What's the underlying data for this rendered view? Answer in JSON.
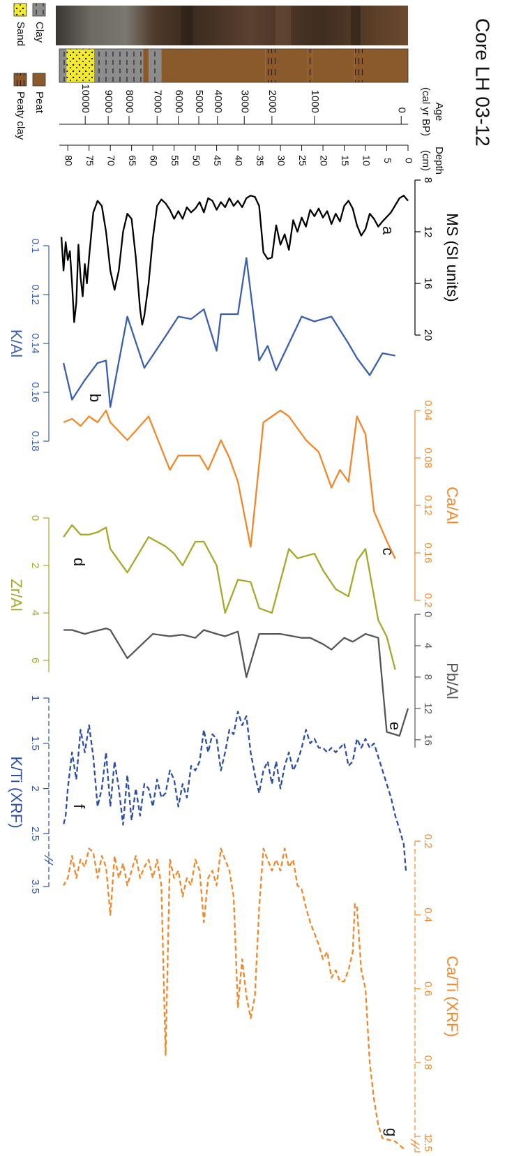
{
  "chart_data": [
    {
      "type": "core",
      "title": "Core LH 03-12",
      "age_label": [
        "Age",
        "(cal yr BP)"
      ],
      "depth_label": [
        "Depth",
        "(cm)"
      ],
      "ylim": [
        0,
        82
      ],
      "yticks": [
        0,
        5,
        10,
        15,
        20,
        25,
        30,
        35,
        40,
        45,
        50,
        55,
        60,
        65,
        70,
        75,
        80
      ],
      "age_ticks": [
        0,
        1000,
        2000,
        3000,
        4000,
        5000,
        6000,
        7000,
        8000,
        9000,
        10000
      ],
      "age_tick_depths": [
        1.6,
        22,
        32,
        38.5,
        44.8,
        49.2,
        54,
        59,
        65.6,
        70.5,
        75.9
      ],
      "legend": [
        {
          "name": "Clay",
          "color": "#8c8c8c"
        },
        {
          "name": "Sand",
          "color": "#f3ea2b"
        },
        {
          "name": "Peat",
          "color": "#8b5a2b"
        },
        {
          "name": "Peaty clay",
          "color": "#8b5a2b"
        }
      ],
      "layers": [
        {
          "lith": "Peat",
          "top": 0,
          "bottom": 10.5
        },
        {
          "lith": "Peaty clay",
          "top": 10.5,
          "bottom": 12.5
        },
        {
          "lith": "Peat",
          "top": 12.5,
          "bottom": 22.5
        },
        {
          "lith": "Peaty clay",
          "top": 22.5,
          "bottom": 23.5
        },
        {
          "lith": "Peat",
          "top": 23.5,
          "bottom": 31
        },
        {
          "lith": "Peaty clay",
          "top": 31,
          "bottom": 33.5
        },
        {
          "lith": "Peat",
          "top": 33.5,
          "bottom": 58
        },
        {
          "lith": "Clay",
          "top": 58,
          "bottom": 61
        },
        {
          "lith": "Peat",
          "top": 61,
          "bottom": 62.3
        },
        {
          "lith": "Clay",
          "top": 62.3,
          "bottom": 73.8
        },
        {
          "lith": "Sand",
          "top": 73.8,
          "bottom": 80.3
        },
        {
          "lith": "Clay",
          "top": 80.3,
          "bottom": 82
        }
      ]
    },
    {
      "type": "line",
      "ylabel": "MS (SI units)",
      "annotation": "a",
      "color": "#000000",
      "dash": false,
      "ylim": [
        8,
        20
      ],
      "yticks": [
        8,
        12,
        16,
        20
      ],
      "x": [
        0,
        1,
        2,
        4,
        6,
        7,
        8,
        9,
        10,
        11,
        12,
        13,
        14,
        15,
        16,
        17,
        18,
        19,
        20,
        21,
        22,
        23,
        24,
        25,
        26,
        27,
        28,
        29,
        30,
        31,
        32,
        33,
        34,
        35,
        36,
        37,
        38,
        39,
        40,
        41,
        42,
        43,
        44,
        45,
        46,
        47,
        48,
        49,
        50,
        51,
        52,
        53,
        54,
        55,
        56,
        57,
        58,
        59,
        60,
        61,
        62,
        62.5,
        63,
        64,
        65,
        66,
        67,
        68,
        69,
        70,
        71,
        72,
        73,
        74,
        75,
        75.5,
        76,
        76.5,
        77,
        77.5,
        78,
        78.5,
        79,
        79.5,
        80,
        80.5,
        81,
        81.5
      ],
      "values": [
        9.6,
        9.2,
        9.4,
        10.5,
        11.2,
        11.6,
        11.0,
        10.6,
        11.8,
        12.3,
        11.5,
        10.2,
        9.6,
        10.0,
        11.2,
        10.6,
        11.4,
        10.4,
        10.9,
        10.2,
        10.8,
        10.3,
        11.6,
        10.9,
        12.0,
        11.1,
        13.4,
        12.2,
        13.0,
        11.5,
        14.0,
        14.1,
        13.6,
        10.0,
        9.3,
        9.2,
        9.4,
        10.1,
        9.6,
        10.0,
        9.4,
        10.1,
        9.7,
        10.3,
        9.6,
        9.4,
        10.5,
        9.7,
        10.2,
        10.5,
        10.1,
        11.0,
        10.4,
        11.0,
        10.3,
        9.8,
        9.5,
        10.0,
        12.5,
        16.0,
        18.5,
        19.2,
        18.0,
        14.0,
        11.0,
        10.6,
        12.0,
        15.0,
        16.5,
        15.0,
        12.0,
        10.0,
        9.6,
        10.5,
        14.0,
        16.0,
        14.5,
        17.0,
        15.5,
        13.0,
        17.5,
        19.0,
        16.0,
        13.5,
        14.2,
        12.8,
        15.0,
        12.4
      ]
    },
    {
      "type": "line",
      "ylabel": "K/Al",
      "annotation": "b",
      "color": "#3a5fad",
      "dash": false,
      "ylim": [
        0.1,
        0.18
      ],
      "yticks": [
        0.1,
        0.12,
        0.14,
        0.16,
        0.18
      ],
      "x": [
        3,
        6,
        9,
        12,
        14,
        18,
        22,
        25,
        28,
        31,
        33,
        35,
        38,
        40,
        44,
        45,
        48,
        51,
        54,
        57,
        62,
        66,
        70,
        71,
        73,
        76,
        79,
        81
      ],
      "values": [
        0.145,
        0.144,
        0.153,
        0.146,
        0.14,
        0.129,
        0.131,
        0.129,
        0.14,
        0.151,
        0.141,
        0.147,
        0.105,
        0.128,
        0.128,
        0.143,
        0.126,
        0.13,
        0.129,
        0.137,
        0.15,
        0.129,
        0.166,
        0.147,
        0.148,
        0.155,
        0.163,
        0.148
      ]
    },
    {
      "type": "line",
      "ylabel": "Ca/Al",
      "annotation": "c",
      "color": "#f0882a",
      "dash": false,
      "ylim": [
        0.04,
        0.2
      ],
      "yticks": [
        0.04,
        0.08,
        0.12,
        0.16,
        0.2
      ],
      "x": [
        3,
        5,
        8,
        10,
        12,
        14,
        16,
        18,
        21,
        24,
        28,
        30,
        34,
        37,
        40,
        42,
        44,
        47,
        49,
        54,
        56,
        61,
        66,
        70,
        71,
        73,
        75,
        77,
        79,
        81
      ],
      "values": [
        0.165,
        0.15,
        0.125,
        0.06,
        0.045,
        0.1,
        0.09,
        0.105,
        0.075,
        0.065,
        0.045,
        0.04,
        0.05,
        0.155,
        0.1,
        0.08,
        0.065,
        0.09,
        0.078,
        0.078,
        0.09,
        0.045,
        0.065,
        0.05,
        0.04,
        0.05,
        0.045,
        0.053,
        0.047,
        0.05
      ]
    },
    {
      "type": "line",
      "ylabel": "Zr/Al",
      "annotation": "d",
      "color": "#a6a82a",
      "dash": false,
      "ylim": [
        0,
        6.5
      ],
      "yticks": [
        0,
        2,
        4,
        6
      ],
      "x": [
        3,
        5,
        7,
        10,
        12,
        14,
        17,
        20,
        22,
        26,
        28,
        32,
        35,
        37,
        40,
        43,
        45,
        48,
        50,
        53,
        55,
        57,
        61,
        66,
        70,
        71,
        73,
        75,
        77,
        79,
        81
      ],
      "values": [
        6.4,
        5.0,
        4.3,
        1.3,
        1.8,
        3.3,
        3.0,
        2.2,
        1.5,
        1.7,
        1.3,
        4.0,
        3.8,
        2.7,
        2.6,
        4.0,
        2.0,
        1.0,
        1.0,
        2.0,
        1.5,
        1.2,
        0.8,
        2.3,
        1.3,
        0.4,
        0.6,
        0.7,
        0.7,
        0.3,
        0.8
      ]
    },
    {
      "type": "line",
      "ylabel": "Pb/Al",
      "annotation": "e",
      "color": "#555555",
      "dash": false,
      "ylim": [
        0,
        17
      ],
      "yticks": [
        0,
        4,
        8,
        12,
        16
      ],
      "x": [
        0,
        2,
        5,
        7,
        10,
        13,
        15,
        18,
        20,
        23,
        25,
        30,
        35,
        38,
        40,
        43,
        45,
        48,
        50,
        53,
        56,
        60,
        66,
        70,
        71,
        74,
        76,
        79,
        81
      ],
      "values": [
        12,
        15.5,
        15,
        3.0,
        2.5,
        3.5,
        3.0,
        4.5,
        3.8,
        3.0,
        3.0,
        2.5,
        2.5,
        8.0,
        2.2,
        2.8,
        2.5,
        2.0,
        3.0,
        2.6,
        2.8,
        2.5,
        5.6,
        2.0,
        1.8,
        2.2,
        2.5,
        2.0,
        2.0
      ]
    },
    {
      "type": "line",
      "ylabel": "K/Ti (XRF)",
      "annotation": "f",
      "color": "#2c4fa3",
      "dash": true,
      "ylim": [
        1,
        3.5
      ],
      "ybreak": [
        2.5,
        3.5
      ],
      "yticks": [
        1,
        1.5,
        2,
        2.5,
        3.5
      ],
      "x": [
        0.5,
        1,
        2,
        3,
        4,
        5,
        6,
        7,
        8,
        9,
        10,
        11,
        12,
        13,
        14,
        15,
        16,
        17,
        18,
        19,
        20,
        21,
        22,
        23,
        24,
        25,
        26,
        27,
        28,
        29,
        30,
        31,
        32,
        33,
        34,
        35,
        36,
        37,
        38,
        39,
        40,
        41,
        42,
        43,
        44,
        45,
        46,
        47,
        48,
        49,
        50,
        51,
        52,
        53,
        54,
        55,
        56,
        57,
        58,
        59,
        60,
        61,
        62,
        63,
        64,
        65,
        66,
        67,
        68,
        69,
        70,
        71,
        72,
        73,
        74,
        75,
        76,
        77,
        78,
        79,
        80,
        80.5,
        81
      ],
      "values": [
        3.2,
        2.7,
        2.45,
        2.3,
        2.1,
        1.95,
        1.8,
        1.65,
        1.5,
        1.55,
        1.45,
        1.55,
        1.45,
        1.7,
        1.75,
        1.5,
        1.55,
        1.6,
        1.55,
        1.6,
        1.55,
        1.55,
        1.45,
        1.5,
        1.35,
        1.55,
        1.7,
        1.8,
        1.6,
        1.75,
        2.0,
        1.7,
        1.95,
        1.7,
        1.8,
        2.05,
        1.85,
        1.6,
        1.2,
        1.3,
        1.15,
        1.4,
        1.35,
        1.6,
        1.8,
        1.45,
        1.4,
        1.6,
        1.35,
        1.7,
        1.8,
        1.75,
        2.1,
        1.95,
        2.2,
        1.9,
        1.8,
        2.05,
        2.1,
        1.9,
        2.2,
        2.0,
        1.95,
        2.3,
        2.0,
        2.35,
        1.85,
        2.4,
        2.0,
        1.7,
        2.2,
        1.6,
        2.0,
        2.2,
        1.65,
        1.3,
        1.6,
        1.35,
        1.9,
        1.6,
        2.0,
        2.3,
        2.4
      ]
    },
    {
      "type": "line",
      "ylabel": "Ca/Ti (XRF)",
      "annotation": "g",
      "color": "#f0882a",
      "dash": true,
      "ylim": [
        0.2,
        2.5
      ],
      "ybreak": [
        1,
        2.5
      ],
      "yticks": [
        0.2,
        0.4,
        0.6,
        0.8,
        1,
        2.5
      ],
      "x": [
        1,
        3,
        6,
        7,
        8,
        9,
        10,
        11,
        12,
        12.5,
        13,
        14,
        15,
        16,
        17,
        18,
        19,
        20,
        21,
        22,
        23,
        24,
        25,
        26,
        27,
        28,
        29,
        30,
        31,
        32,
        33,
        34,
        35,
        36,
        37,
        38,
        39,
        40,
        41,
        42,
        43,
        44,
        45,
        46,
        47,
        48,
        49,
        50,
        51,
        52,
        53,
        54,
        55,
        56,
        57,
        58,
        59,
        60,
        61,
        62,
        63,
        64,
        65,
        66,
        67,
        68,
        69,
        70,
        71,
        72,
        73,
        74,
        75,
        76,
        77,
        78,
        79,
        80,
        81
      ],
      "values": [
        2.2,
        1.5,
        1.2,
        0.97,
        0.9,
        0.8,
        0.6,
        0.55,
        0.38,
        0.37,
        0.5,
        0.55,
        0.58,
        0.58,
        0.55,
        0.57,
        0.5,
        0.52,
        0.48,
        0.45,
        0.42,
        0.38,
        0.33,
        0.32,
        0.25,
        0.27,
        0.22,
        0.28,
        0.25,
        0.28,
        0.25,
        0.22,
        0.38,
        0.62,
        0.68,
        0.62,
        0.52,
        0.65,
        0.35,
        0.28,
        0.25,
        0.22,
        0.32,
        0.28,
        0.3,
        0.42,
        0.28,
        0.25,
        0.32,
        0.3,
        0.35,
        0.28,
        0.3,
        0.25,
        0.78,
        0.32,
        0.25,
        0.3,
        0.25,
        0.27,
        0.3,
        0.24,
        0.28,
        0.32,
        0.26,
        0.3,
        0.24,
        0.4,
        0.27,
        0.24,
        0.3,
        0.23,
        0.22,
        0.27,
        0.25,
        0.3,
        0.24,
        0.3,
        0.32
      ]
    }
  ]
}
